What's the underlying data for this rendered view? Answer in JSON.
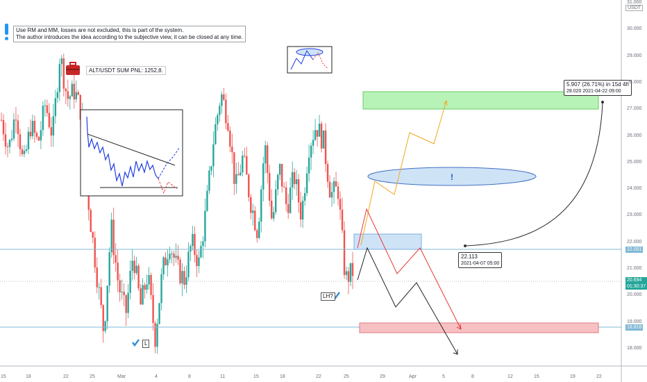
{
  "note": {
    "line1": "Use RM and MM, losses are not excluded, this is part of the system.",
    "line2": "The author introduces the idea according to the subjective view, it can be closed at any time."
  },
  "pnl_label": "ALT/USDT SUM PNL: 1252,8.",
  "currency": "USDT",
  "exclamation": "!",
  "labels": {
    "lh": "LH?",
    "l": "L"
  },
  "tooltip_target": {
    "line1": "5.907 (26.71%) in 15d 4h",
    "line2": "28.020   2021-04-22  09:00"
  },
  "tooltip_entry": {
    "line1": "22.113",
    "line2": "2021-04-07 05:00"
  },
  "price_boxes": {
    "upper": "22.001",
    "last": "20.694",
    "countdown": "01:30:37",
    "lower": "18.818"
  },
  "chart_data": {
    "type": "candlestick",
    "title": "",
    "y_axis": {
      "side": "right",
      "ticks": [
        "31.000",
        "30.000",
        "29.000",
        "28.000",
        "27.000",
        "26.000",
        "25.000",
        "24.000",
        "23.000",
        "22.000",
        "21.000",
        "20.000",
        "19.000",
        "18.000"
      ]
    },
    "x_axis": {
      "ticks": [
        "15",
        "18",
        "22",
        "25",
        "Mar",
        "4",
        "8",
        "11",
        "15",
        "18",
        "22",
        "25",
        "29",
        "Apr",
        "5",
        "8",
        "12",
        "15",
        "19",
        "22"
      ]
    },
    "series_close_path": [
      26.6,
      25.5,
      27.0,
      24.8,
      26.4,
      25.7,
      27.2,
      26.0,
      29.1,
      27.4,
      27.7,
      26.8,
      23.2,
      20.9,
      18.6,
      22.6,
      20.4,
      19.3,
      21.6,
      19.6,
      20.8,
      18.4,
      20.9,
      22.0,
      21.0,
      20.6,
      22.0,
      21.2,
      23.3,
      25.9,
      27.6,
      26.6,
      24.0,
      25.2,
      23.6,
      22.4,
      25.7,
      22.7,
      24.8,
      23.3,
      24.5,
      23.0,
      25.6,
      26.4,
      25.8,
      23.8,
      24.0,
      20.6,
      20.9
    ],
    "accent_colors": {
      "up": "#26a69a",
      "down": "#ef5350",
      "target_zone": "#90ee90",
      "stop_zone": "#f4a4a8",
      "entry_zone": "#bbdefb",
      "orange_path": "#f5a623",
      "red_path": "#e53935",
      "black_path": "#222222"
    }
  }
}
